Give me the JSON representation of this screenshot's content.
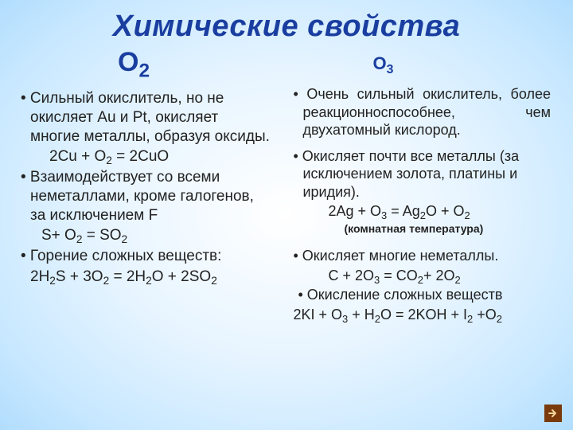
{
  "title_html": "Химические свойства",
  "left": {
    "heading_html": "О<sub>2</sub>",
    "b1_html": "• Сильный окислитель, но не окисляет Au и Pt, окисляет многие металлы, образуя оксиды.",
    "eq1_html": "2Cu + O<sub>2</sub> = 2CuO",
    "b2_html": "• Взаимодействует со всеми неметаллами, кроме галогенов, за исключением F",
    "eq2_html": "S+ O<sub>2</sub> = SO<sub>2</sub>",
    "b3_html": "• Горение сложных веществ:",
    "eq3_html": "2H<sub>2</sub>S + 3O<sub>2</sub> = 2H<sub>2</sub>O + 2SO<sub>2</sub>"
  },
  "right": {
    "heading_html": "О<sub>3</sub>",
    "b1_html": "• Очень сильный окислитель, более реакционноспособнее, чем двухатомный кислород.",
    "b2_html": "• Окисляет почти все металлы (за исключением золота, платины и иридия).",
    "eq1_html": "2Ag + O<sub>3</sub> = Ag<sub>2</sub>O +  O<sub>2</sub>",
    "note1_html": "(комнатная температура)",
    "b3_html": "• Окисляет многие неметаллы.",
    "eq2_html": "C + 2O<sub>3</sub> = CO<sub>2</sub>+ 2O<sub>2</sub>",
    "b4_html": "• Окисление сложных веществ",
    "eq3_html": "2KI + O<sub>3</sub> + H<sub>2</sub>O = 2KOH + I<sub>2</sub> +O<sub>2</sub>"
  },
  "colors": {
    "heading": "#1a3ea0",
    "text": "#222222",
    "nav_bg": "#7a3a0c",
    "nav_arrow": "#f3d59a"
  }
}
